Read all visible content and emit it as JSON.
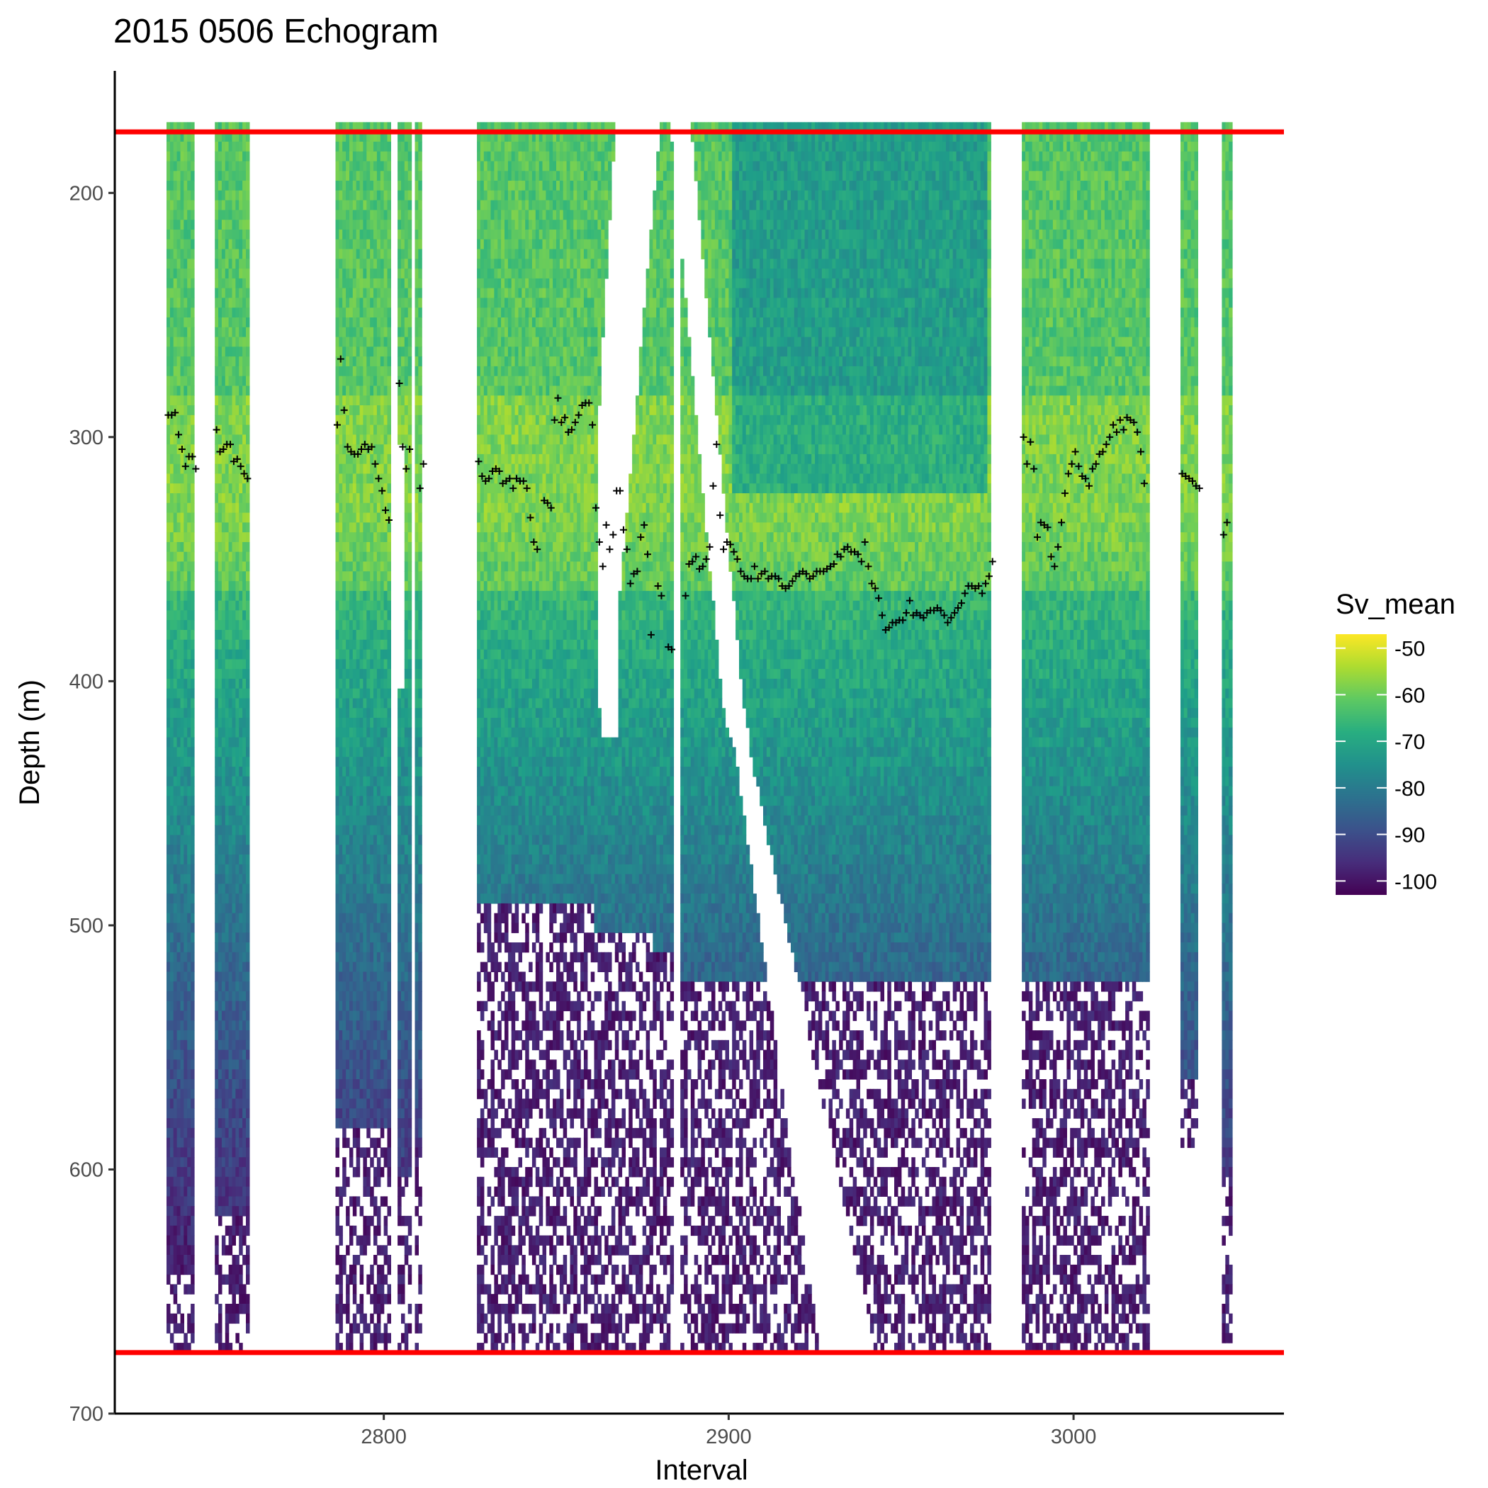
{
  "chart_data": {
    "type": "heatmap",
    "title": "2015 0506 Echogram",
    "xlabel": "Interval",
    "ylabel": "Depth (m)",
    "xlim": [
      2722,
      3061
    ],
    "ylim": [
      700,
      150
    ],
    "y_reversed": true,
    "x_ticks": [
      2800,
      2900,
      3000
    ],
    "y_ticks": [
      200,
      300,
      400,
      500,
      600,
      700
    ],
    "grid": false,
    "legend": {
      "title": "Sv_mean",
      "placement": "right",
      "ticks": [
        -50,
        -60,
        -70,
        -80,
        -90,
        -100
      ],
      "range": [
        -103,
        -47
      ],
      "colormap": [
        "#440154",
        "#3b528b",
        "#21918c",
        "#5ec962",
        "#fde725"
      ]
    },
    "reference_lines": {
      "color": "#ff0000",
      "depths": [
        175,
        675
      ]
    },
    "depth_range": [
      171,
      672
    ],
    "columns": [
      {
        "x_start": 2737,
        "x_end": 2745,
        "deep_limit": 672,
        "sparse_start": 640
      },
      {
        "x_start": 2751,
        "x_end": 2761,
        "deep_limit": 672,
        "sparse_start": 615
      },
      {
        "x_start": 2786,
        "x_end": 2802,
        "deep_limit": 672,
        "sparse_start": 580
      },
      {
        "x_start": 2804,
        "x_end": 2808,
        "deep_limit": 672,
        "sparse_start": 600
      },
      {
        "x_start": 2809,
        "x_end": 2811,
        "deep_limit": 672,
        "sparse_start": 590
      },
      {
        "x_start": 2827,
        "x_end": 2861,
        "deep_limit": 672,
        "sparse_start": 490
      },
      {
        "x_start": 2861,
        "x_end": 2878,
        "deep_limit": 672,
        "sparse_start": 500
      },
      {
        "x_start": 2878,
        "x_end": 2884,
        "deep_limit": 672,
        "sparse_start": 510
      },
      {
        "x_start": 2886,
        "x_end": 2915,
        "deep_limit": 672,
        "sparse_start": 520
      },
      {
        "x_start": 2915,
        "x_end": 2976,
        "deep_limit": 672,
        "sparse_start": 520
      },
      {
        "x_start": 2985,
        "x_end": 3022,
        "deep_limit": 672,
        "sparse_start": 520
      },
      {
        "x_start": 3031,
        "x_end": 3036,
        "deep_limit": 590,
        "sparse_start": 560
      },
      {
        "x_start": 3043,
        "x_end": 3046,
        "deep_limit": 672,
        "sparse_start": 600
      }
    ],
    "gap_band": {
      "description_points": [
        [
          2864,
          171
        ],
        [
          2870,
          171
        ],
        [
          2868,
          400
        ],
        [
          2880,
          171
        ],
        [
          2886,
          171
        ],
        [
          2888,
          400
        ],
        [
          2905,
          520
        ],
        [
          2912,
          600
        ],
        [
          2918,
          672
        ]
      ]
    },
    "max_sv_series": {
      "name": "",
      "marker": "+",
      "points": [
        [
          2737,
          291
        ],
        [
          2738,
          291
        ],
        [
          2739,
          290
        ],
        [
          2740,
          299
        ],
        [
          2741,
          305
        ],
        [
          2742,
          312
        ],
        [
          2743,
          308
        ],
        [
          2744,
          308
        ],
        [
          2745,
          313
        ],
        [
          2751,
          297
        ],
        [
          2752,
          306
        ],
        [
          2753,
          305
        ],
        [
          2754,
          303
        ],
        [
          2755,
          303
        ],
        [
          2756,
          310
        ],
        [
          2757,
          309
        ],
        [
          2758,
          312
        ],
        [
          2759,
          315
        ],
        [
          2760,
          317
        ],
        [
          2786,
          295
        ],
        [
          2787,
          268
        ],
        [
          2788,
          289
        ],
        [
          2789,
          304
        ],
        [
          2790,
          306
        ],
        [
          2791,
          307
        ],
        [
          2792,
          307
        ],
        [
          2793,
          305
        ],
        [
          2794,
          303
        ],
        [
          2795,
          305
        ],
        [
          2796,
          304
        ],
        [
          2797,
          311
        ],
        [
          2798,
          317
        ],
        [
          2799,
          322
        ],
        [
          2800,
          330
        ],
        [
          2801,
          334
        ],
        [
          2804,
          278
        ],
        [
          2805,
          304
        ],
        [
          2806,
          313
        ],
        [
          2807,
          305
        ],
        [
          2810,
          321
        ],
        [
          2811,
          311
        ],
        [
          2827,
          310
        ],
        [
          2828,
          316
        ],
        [
          2829,
          318
        ],
        [
          2830,
          317
        ],
        [
          2831,
          314
        ],
        [
          2832,
          313
        ],
        [
          2833,
          314
        ],
        [
          2834,
          319
        ],
        [
          2835,
          318
        ],
        [
          2836,
          317
        ],
        [
          2837,
          321
        ],
        [
          2838,
          317
        ],
        [
          2839,
          318
        ],
        [
          2840,
          318
        ],
        [
          2841,
          321
        ],
        [
          2842,
          333
        ],
        [
          2843,
          343
        ],
        [
          2844,
          346
        ],
        [
          2846,
          326
        ],
        [
          2847,
          327
        ],
        [
          2848,
          329
        ],
        [
          2849,
          293
        ],
        [
          2850,
          284
        ],
        [
          2851,
          294
        ],
        [
          2852,
          292
        ],
        [
          2853,
          298
        ],
        [
          2854,
          297
        ],
        [
          2855,
          294
        ],
        [
          2856,
          291
        ],
        [
          2857,
          287
        ],
        [
          2858,
          286
        ],
        [
          2859,
          286
        ],
        [
          2860,
          295
        ],
        [
          2861,
          329
        ],
        [
          2862,
          343
        ],
        [
          2863,
          353
        ],
        [
          2864,
          336
        ],
        [
          2865,
          346
        ],
        [
          2866,
          340
        ],
        [
          2867,
          322
        ],
        [
          2868,
          322
        ],
        [
          2869,
          338
        ],
        [
          2870,
          346
        ],
        [
          2871,
          360
        ],
        [
          2872,
          356
        ],
        [
          2873,
          355
        ],
        [
          2874,
          341
        ],
        [
          2875,
          336
        ],
        [
          2876,
          348
        ],
        [
          2877,
          381
        ],
        [
          2879,
          361
        ],
        [
          2880,
          365
        ],
        [
          2882,
          386
        ],
        [
          2883,
          387
        ],
        [
          2887,
          365
        ],
        [
          2888,
          352
        ],
        [
          2889,
          351
        ],
        [
          2890,
          349
        ],
        [
          2891,
          354
        ],
        [
          2892,
          353
        ],
        [
          2893,
          350
        ],
        [
          2894,
          345
        ],
        [
          2895,
          320
        ],
        [
          2896,
          303
        ],
        [
          2897,
          332
        ],
        [
          2898,
          346
        ],
        [
          2899,
          343
        ],
        [
          2900,
          344
        ],
        [
          2901,
          347
        ],
        [
          2902,
          350
        ],
        [
          2903,
          355
        ],
        [
          2904,
          357
        ],
        [
          2905,
          358
        ],
        [
          2906,
          358
        ],
        [
          2907,
          353
        ],
        [
          2908,
          358
        ],
        [
          2909,
          356
        ],
        [
          2910,
          355
        ],
        [
          2911,
          358
        ],
        [
          2912,
          357
        ],
        [
          2913,
          357
        ],
        [
          2914,
          358
        ],
        [
          2915,
          361
        ],
        [
          2916,
          362
        ],
        [
          2917,
          361
        ],
        [
          2918,
          359
        ],
        [
          2919,
          357
        ],
        [
          2920,
          356
        ],
        [
          2921,
          355
        ],
        [
          2922,
          356
        ],
        [
          2923,
          358
        ],
        [
          2924,
          357
        ],
        [
          2925,
          355
        ],
        [
          2926,
          355
        ],
        [
          2927,
          355
        ],
        [
          2928,
          354
        ],
        [
          2929,
          353
        ],
        [
          2930,
          352
        ],
        [
          2931,
          348
        ],
        [
          2932,
          349
        ],
        [
          2933,
          346
        ],
        [
          2934,
          345
        ],
        [
          2935,
          347
        ],
        [
          2936,
          347
        ],
        [
          2937,
          348
        ],
        [
          2938,
          351
        ],
        [
          2939,
          343
        ],
        [
          2940,
          353
        ],
        [
          2941,
          360
        ],
        [
          2942,
          362
        ],
        [
          2943,
          366
        ],
        [
          2944,
          373
        ],
        [
          2945,
          379
        ],
        [
          2946,
          378
        ],
        [
          2947,
          376
        ],
        [
          2948,
          376
        ],
        [
          2949,
          375
        ],
        [
          2950,
          375
        ],
        [
          2951,
          372
        ],
        [
          2952,
          367
        ],
        [
          2953,
          373
        ],
        [
          2954,
          372
        ],
        [
          2955,
          373
        ],
        [
          2956,
          374
        ],
        [
          2957,
          372
        ],
        [
          2958,
          371
        ],
        [
          2959,
          371
        ],
        [
          2960,
          370
        ],
        [
          2961,
          371
        ],
        [
          2962,
          373
        ],
        [
          2963,
          376
        ],
        [
          2964,
          374
        ],
        [
          2965,
          372
        ],
        [
          2966,
          370
        ],
        [
          2967,
          368
        ],
        [
          2968,
          364
        ],
        [
          2969,
          361
        ],
        [
          2970,
          361
        ],
        [
          2971,
          362
        ],
        [
          2972,
          361
        ],
        [
          2973,
          364
        ],
        [
          2974,
          360
        ],
        [
          2975,
          357
        ],
        [
          2976,
          351
        ],
        [
          2985,
          300
        ],
        [
          2986,
          311
        ],
        [
          2987,
          302
        ],
        [
          2988,
          313
        ],
        [
          2989,
          341
        ],
        [
          2990,
          335
        ],
        [
          2991,
          336
        ],
        [
          2992,
          337
        ],
        [
          2993,
          349
        ],
        [
          2994,
          353
        ],
        [
          2995,
          345
        ],
        [
          2996,
          335
        ],
        [
          2997,
          323
        ],
        [
          2998,
          315
        ],
        [
          2999,
          311
        ],
        [
          3000,
          306
        ],
        [
          3001,
          312
        ],
        [
          3002,
          316
        ],
        [
          3003,
          317
        ],
        [
          3004,
          320
        ],
        [
          3005,
          313
        ],
        [
          3006,
          311
        ],
        [
          3007,
          307
        ],
        [
          3008,
          306
        ],
        [
          3009,
          303
        ],
        [
          3010,
          300
        ],
        [
          3011,
          295
        ],
        [
          3012,
          298
        ],
        [
          3013,
          293
        ],
        [
          3014,
          297
        ],
        [
          3015,
          292
        ],
        [
          3016,
          293
        ],
        [
          3017,
          294
        ],
        [
          3018,
          298
        ],
        [
          3019,
          306
        ],
        [
          3020,
          319
        ],
        [
          3031,
          315
        ],
        [
          3032,
          316
        ],
        [
          3033,
          317
        ],
        [
          3034,
          318
        ],
        [
          3035,
          320
        ],
        [
          3036,
          321
        ],
        [
          3043,
          340
        ],
        [
          3044,
          335
        ]
      ]
    }
  }
}
